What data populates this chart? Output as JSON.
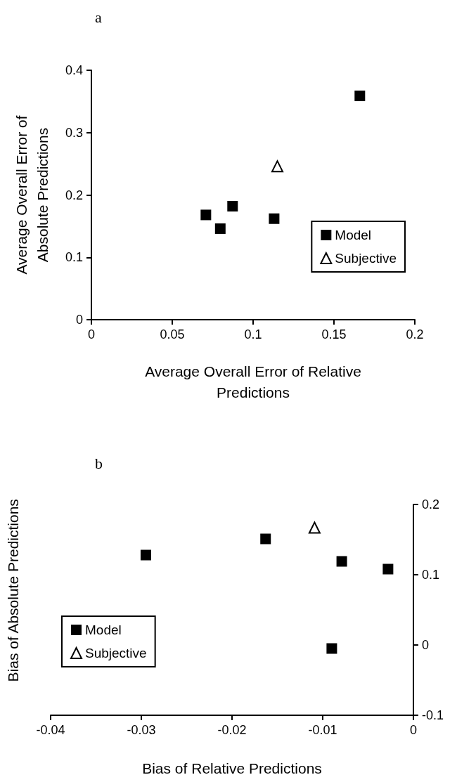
{
  "chart_data": [
    {
      "type": "scatter",
      "title": "a",
      "xlabel": "Average Overall Error of Relative Predictions",
      "ylabel": "Average Overall Error of Absolute Predictions",
      "series": [
        {
          "name": "Model",
          "color": "#000000",
          "marker": "square",
          "x": [
            0.0708,
            0.0797,
            0.0873,
            0.113,
            0.166
          ],
          "values": [
            0.168,
            0.146,
            0.182,
            0.162,
            0.359
          ]
        },
        {
          "name": "Subjective",
          "color": "#000000",
          "marker": "triangle",
          "x": [
            0.115
          ],
          "values": [
            0.246
          ]
        }
      ],
      "xlim": [
        0,
        0.2
      ],
      "xticks": [
        0,
        0.05,
        0.1,
        0.15,
        0.2
      ],
      "ylim": [
        0,
        0.4
      ],
      "yticks": [
        0,
        0.1,
        0.2,
        0.3,
        0.4
      ],
      "grid": false,
      "legend": "bottom right"
    },
    {
      "type": "scatter",
      "title": "b",
      "xlabel": "Bias of Relative Predictions",
      "y2label": "Bias of Absolute Predictions",
      "series": [
        {
          "name": "Model",
          "color": "#000000",
          "marker": "square",
          "axis": "y2",
          "x": [
            -0.0295,
            -0.0163,
            -0.0079,
            -0.0028,
            -0.009
          ],
          "values": [
            0.128,
            0.151,
            0.119,
            0.108,
            -0.005
          ]
        },
        {
          "name": "Subjective",
          "color": "#000000",
          "marker": "triangle",
          "axis": "y2",
          "x": [
            -0.0109
          ],
          "values": [
            0.167
          ]
        }
      ],
      "xlim": [
        -0.04,
        0
      ],
      "xticks": [
        -0.04,
        -0.03,
        -0.02,
        -0.01,
        0
      ],
      "y2lim": [
        -0.1,
        0.2
      ],
      "y2ticks": [
        -0.1,
        0,
        0.1,
        0.2
      ],
      "grid": false,
      "legend": "bottom left"
    }
  ]
}
